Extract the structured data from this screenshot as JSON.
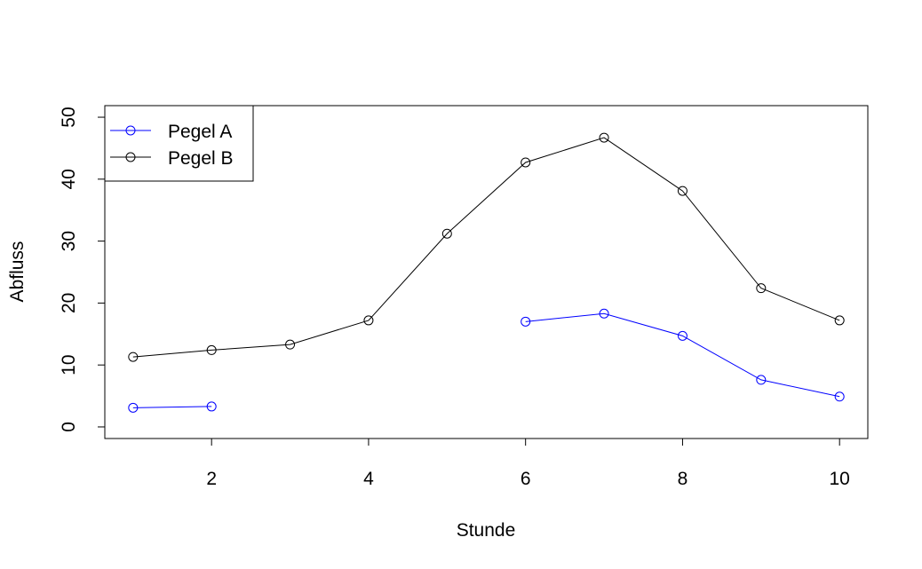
{
  "chart_data": {
    "type": "line",
    "title": "",
    "xlabel": "Stunde",
    "ylabel": "Abfluss",
    "x": [
      1,
      2,
      3,
      4,
      5,
      6,
      7,
      8,
      9,
      10
    ],
    "xlim": [
      0.64,
      10.36
    ],
    "ylim": [
      -1.87,
      51.87
    ],
    "xticks": [
      2,
      4,
      6,
      8,
      10
    ],
    "yticks": [
      0,
      10,
      20,
      30,
      40,
      50
    ],
    "grid": false,
    "legend_position": "top-left",
    "series": [
      {
        "name": "Pegel A",
        "color": "#0000ff",
        "values": [
          3.1,
          3.3,
          null,
          null,
          null,
          17.0,
          18.3,
          14.7,
          7.6,
          4.9
        ]
      },
      {
        "name": "Pegel B",
        "color": "#000000",
        "values": [
          11.3,
          12.4,
          13.3,
          17.2,
          31.2,
          42.7,
          46.7,
          38.1,
          22.4,
          17.2
        ]
      }
    ]
  }
}
